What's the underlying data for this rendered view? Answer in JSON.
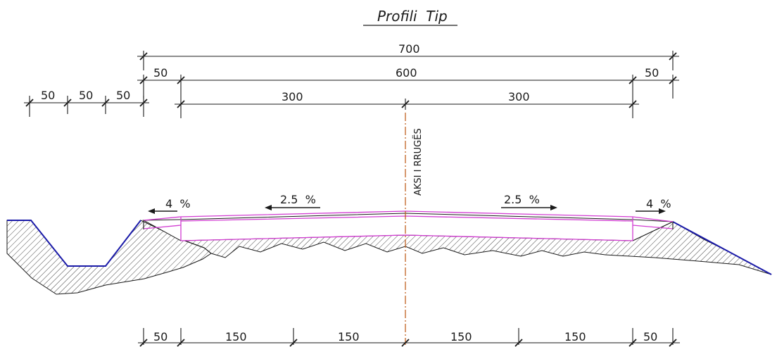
{
  "title": "Profili  Tip",
  "axis_label": "AKSI I RRUGËS",
  "dimensions": {
    "total": "700",
    "carriageway": "600",
    "left_shoulder": "50",
    "right_shoulder": "50",
    "left_lane": "300",
    "right_lane": "300",
    "ditch_1": "50",
    "ditch_2": "50",
    "ditch_3": "50",
    "bottom_left_shoulder": "50",
    "bottom_1": "150",
    "bottom_2": "150",
    "bottom_3": "150",
    "bottom_4": "150",
    "bottom_right_shoulder": "50"
  },
  "slopes": {
    "left_shoulder": "4  %",
    "left_lane": "2.5  %",
    "right_lane": "2.5  %",
    "right_shoulder": "4  %"
  },
  "colors": {
    "line": "#1a1a1a",
    "slope": "#1a1aa8",
    "pavement": "#d23cd2",
    "axis": "#c06020"
  }
}
